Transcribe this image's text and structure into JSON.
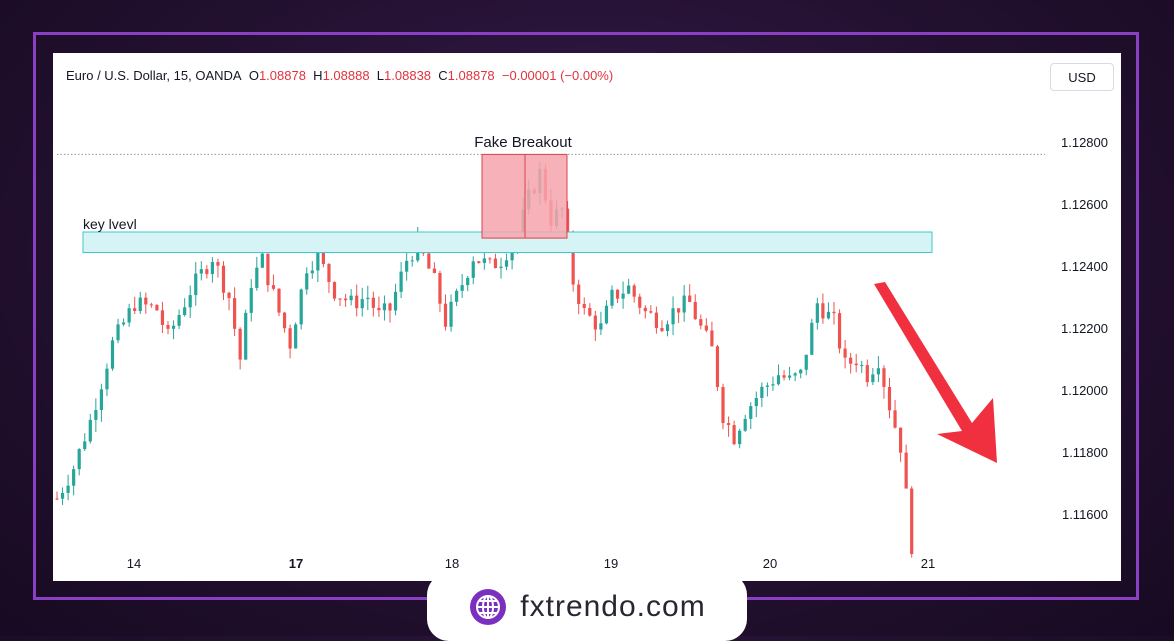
{
  "header": {
    "symbol": "Euro / U.S. Dollar, 15, OANDA",
    "open_label": "O",
    "open": "1.08878",
    "high_label": "H",
    "high": "1.08888",
    "low_label": "L",
    "low": "1.08838",
    "close_label": "C",
    "close": "1.08878",
    "change": "−0.00001 (−0.00%)",
    "currency_button": "USD"
  },
  "chart_data": {
    "type": "candlestick",
    "x_tick_labels": [
      "14",
      "17",
      "18",
      "19",
      "20",
      "21"
    ],
    "y_tick_labels": [
      "1.12800",
      "1.12600",
      "1.12400",
      "1.12200",
      "1.12000",
      "1.11800",
      "1.11600"
    ],
    "ylim": [
      1.115,
      1.1295
    ],
    "grid": false,
    "annotations": {
      "key_level_label": "key lvevl",
      "key_level_range": [
        1.1245,
        1.125
      ],
      "fake_breakout_label": "Fake Breakout",
      "fake_breakout_range": [
        1.1249,
        1.1276
      ],
      "dotted_high_line": 1.1276,
      "arrow_direction": "down"
    },
    "path_waypoints": [
      [
        0,
        1.1165
      ],
      [
        3,
        1.1175
      ],
      [
        6,
        1.119
      ],
      [
        10,
        1.1215
      ],
      [
        14,
        1.1228
      ],
      [
        18,
        1.1226
      ],
      [
        20,
        1.1217
      ],
      [
        24,
        1.1232
      ],
      [
        28,
        1.1243
      ],
      [
        31,
        1.123
      ],
      [
        33,
        1.121
      ],
      [
        35,
        1.1235
      ],
      [
        37,
        1.1242
      ],
      [
        40,
        1.1225
      ],
      [
        42,
        1.1215
      ],
      [
        45,
        1.124
      ],
      [
        47,
        1.1243
      ],
      [
        50,
        1.1232
      ],
      [
        53,
        1.1228
      ],
      [
        56,
        1.123
      ],
      [
        58,
        1.1224
      ],
      [
        60,
        1.1226
      ],
      [
        63,
        1.1242
      ],
      [
        65,
        1.1247
      ],
      [
        68,
        1.1235
      ],
      [
        70,
        1.1222
      ],
      [
        72,
        1.123
      ],
      [
        75,
        1.1243
      ],
      [
        78,
        1.124
      ],
      [
        80,
        1.1242
      ],
      [
        83,
        1.125
      ],
      [
        85,
        1.1262
      ],
      [
        87,
        1.127
      ],
      [
        89,
        1.1255
      ],
      [
        91,
        1.1258
      ],
      [
        93,
        1.1235
      ],
      [
        95,
        1.1225
      ],
      [
        98,
        1.122
      ],
      [
        100,
        1.123
      ],
      [
        103,
        1.1233
      ],
      [
        106,
        1.1225
      ],
      [
        109,
        1.1222
      ],
      [
        112,
        1.1227
      ],
      [
        114,
        1.1228
      ],
      [
        116,
        1.122
      ],
      [
        118,
        1.1213
      ],
      [
        120,
        1.1192
      ],
      [
        122,
        1.1185
      ],
      [
        124,
        1.1193
      ],
      [
        127,
        1.12
      ],
      [
        130,
        1.1205
      ],
      [
        132,
        1.1203
      ],
      [
        134,
        1.1205
      ],
      [
        137,
        1.1228
      ],
      [
        140,
        1.1222
      ],
      [
        142,
        1.1208
      ],
      [
        144,
        1.121
      ],
      [
        146,
        1.1205
      ],
      [
        148,
        1.121
      ],
      [
        150,
        1.1195
      ],
      [
        152,
        1.1182
      ],
      [
        154,
        1.115
      ]
    ],
    "candle_count": 155
  },
  "watermark": {
    "brand": "fxtrendo.com",
    "icon": "globe-icon"
  },
  "colors": {
    "up": "#26a69a",
    "down": "#ef5350",
    "key_zone_fill": "#d6f4f6",
    "key_zone_stroke": "#3cc8cf",
    "breakout_fill": "#f6a5ad",
    "breakout_stroke": "#d9434f",
    "arrow": "#f0303f",
    "frame": "#8a3fc4"
  }
}
